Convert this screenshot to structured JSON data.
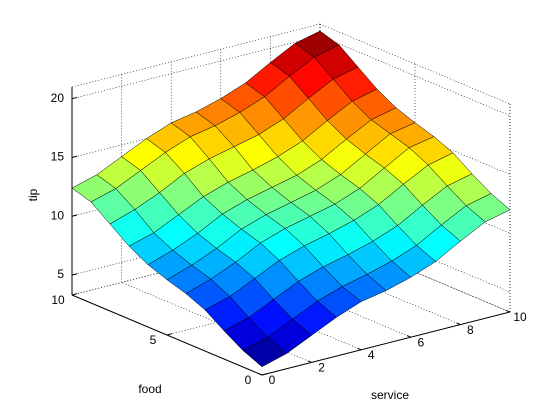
{
  "chart_data": {
    "type": "surface",
    "xlabel": "service",
    "ylabel": "food",
    "zlabel": "tip",
    "x": [
      0,
      1,
      2,
      3,
      4,
      5,
      6,
      7,
      8,
      9,
      10
    ],
    "y": [
      0,
      1,
      2,
      3,
      4,
      5,
      6,
      7,
      8,
      9,
      10
    ],
    "z": [
      [
        4,
        4.6,
        5.6,
        6.6,
        7.4,
        7.8,
        8.4,
        9.2,
        10.4,
        11.5,
        12
      ],
      [
        4.7,
        5.3,
        6.3,
        7.3,
        8.0,
        8.5,
        9.1,
        9.9,
        11.1,
        12.2,
        12.7
      ],
      [
        5.7,
        6.3,
        7.3,
        8.3,
        9.0,
        9.5,
        10.1,
        10.9,
        12.1,
        13.2,
        13.7
      ],
      [
        6.8,
        7.4,
        8.4,
        9.4,
        10.1,
        10.6,
        11.2,
        12.0,
        13.2,
        14.3,
        14.8
      ],
      [
        7.5,
        8.2,
        9.1,
        10.2,
        10.9,
        11.4,
        11.9,
        12.7,
        13.9,
        15.1,
        15.5
      ],
      [
        8.0,
        8.7,
        9.6,
        10.7,
        11.4,
        11.9,
        12.4,
        13.2,
        14.4,
        15.6,
        16.0
      ],
      [
        8.6,
        9.3,
        10.2,
        11.3,
        12.0,
        12.5,
        13.0,
        13.8,
        15.0,
        16.1,
        16.6
      ],
      [
        9.5,
        10.1,
        11.1,
        12.1,
        12.8,
        13.3,
        13.9,
        14.7,
        15.9,
        17.0,
        17.5
      ],
      [
        10.7,
        11.4,
        12.3,
        13.4,
        14.1,
        14.6,
        15.1,
        15.9,
        17.1,
        18.2,
        18.7
      ],
      [
        11.9,
        12.5,
        13.5,
        14.5,
        15.3,
        15.7,
        16.3,
        17.1,
        18.3,
        19.4,
        19.9
      ],
      [
        12.4,
        13.0,
        14.0,
        15.0,
        15.8,
        16.2,
        16.8,
        17.6,
        18.8,
        19.9,
        20.4
      ]
    ],
    "xlim": [
      0,
      10
    ],
    "xticks": [
      0,
      2,
      4,
      6,
      8,
      10
    ],
    "ylim": [
      0,
      10
    ],
    "yticks": [
      0,
      5,
      10
    ],
    "zlim": [
      3.3,
      21
    ],
    "zticks": [
      5,
      10,
      15,
      20
    ],
    "colormap": "jet",
    "grid": true
  }
}
